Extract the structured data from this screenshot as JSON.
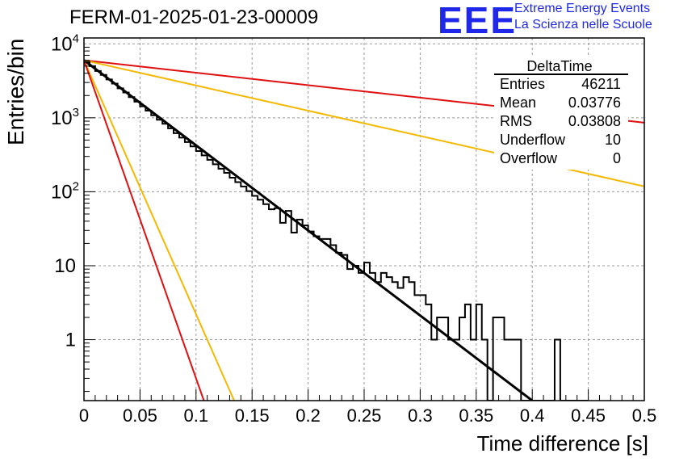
{
  "header": {
    "title": "FERM-01-2025-01-23-00009",
    "logo_text": "EEE",
    "logo_line1": "Extreme Energy Events",
    "logo_line2": "La Scienza nelle Scuole"
  },
  "stats_box": {
    "title": "DeltaTime",
    "rows": [
      {
        "label": "Entries",
        "value": "46211"
      },
      {
        "label": "Mean",
        "value": "0.03776"
      },
      {
        "label": "RMS",
        "value": "0.03808"
      },
      {
        "label": "Underflow",
        "value": "10"
      },
      {
        "label": "Overflow",
        "value": "0"
      }
    ]
  },
  "chart_data": {
    "type": "histogram",
    "xlabel": "Time difference [s]",
    "ylabel": "Entries/bin",
    "xlim": [
      0,
      0.5
    ],
    "ylim": [
      0.15,
      12000
    ],
    "yscale": "log",
    "grid": true,
    "bin_width": 0.005,
    "x_ticks": [
      "0",
      "0.05",
      "0.1",
      "0.15",
      "0.2",
      "0.25",
      "0.3",
      "0.35",
      "0.4",
      "0.45",
      "0.5"
    ],
    "y_ticks": [
      {
        "value": 10000,
        "base": "10",
        "exp": "4"
      },
      {
        "value": 1000,
        "base": "10",
        "exp": "3"
      },
      {
        "value": 100,
        "base": "10",
        "exp": "2"
      },
      {
        "value": 10,
        "base": "10",
        "exp": ""
      },
      {
        "value": 1,
        "base": "1",
        "exp": ""
      }
    ],
    "histogram": [
      5700,
      5000,
      4300,
      3800,
      3300,
      2900,
      2500,
      2200,
      1900,
      1650,
      1430,
      1250,
      1080,
      940,
      830,
      720,
      620,
      540,
      470,
      410,
      355,
      310,
      270,
      235,
      205,
      180,
      155,
      135,
      118,
      102,
      88,
      78,
      68,
      58,
      60,
      38,
      55,
      28,
      42,
      35,
      29,
      25,
      23,
      23,
      19,
      15,
      14,
      9,
      10,
      8,
      11,
      8,
      6,
      8,
      7,
      6,
      5,
      7,
      6,
      4,
      4,
      3,
      1,
      2,
      2,
      1,
      1,
      2,
      3,
      1,
      3,
      1,
      0.1,
      2,
      2,
      1,
      1,
      1,
      0.1,
      0.1,
      0.1,
      0.1,
      0.1,
      0.1,
      1,
      0.1,
      0.1,
      0.1,
      0.1,
      0.1
    ],
    "fit_lines": [
      {
        "color": "#000000",
        "y0": 6000,
        "y1": 0.13,
        "x1": 0.4
      },
      {
        "color": "#e01010",
        "y0": 6000,
        "y1": 860,
        "x1": 0.5
      },
      {
        "color": "#f5b800",
        "y0": 6000,
        "y1": 118,
        "x1": 0.5
      },
      {
        "color": "#f5b800",
        "y0": 6000,
        "y1": 0.15,
        "x1": 0.134
      },
      {
        "color": "#e01010",
        "y0": 6000,
        "y1": 0.15,
        "x1": 0.107
      }
    ]
  }
}
